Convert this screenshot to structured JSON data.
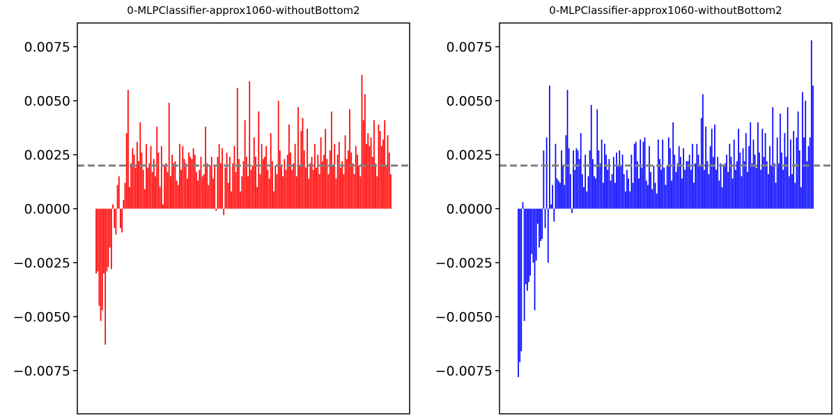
{
  "chart_data": [
    {
      "type": "bar",
      "title": "0-MLPClassifier-approx1060-withoutBottom2",
      "color": "#ff0000",
      "ylim": [
        -0.0095,
        0.0086
      ],
      "yticks": [
        0.0075,
        0.005,
        0.0025,
        0.0,
        -0.0025,
        -0.005,
        -0.0075
      ],
      "ytick_labels": [
        "0.0075",
        "0.0050",
        "0.0025",
        "0.0000",
        "−0.0025",
        "−0.0050",
        "−0.0075"
      ],
      "reference_line": {
        "value": 0.002,
        "style": "dashed",
        "color": "#808080"
      },
      "x_ticks_visible": false,
      "values": [
        -0.003,
        -0.0029,
        -0.0045,
        -0.0052,
        -0.0047,
        -0.003,
        -0.0063,
        -0.0029,
        -0.0027,
        -0.0018,
        -0.0028,
        0.0002,
        -0.0009,
        -0.0012,
        0.0011,
        0.0015,
        -0.0009,
        -0.0011,
        0.0004,
        0.0012,
        0.0035,
        0.0055,
        0.001,
        0.0021,
        0.0028,
        0.0025,
        0.0019,
        0.0031,
        0.0022,
        0.004,
        0.0026,
        0.0018,
        0.0009,
        0.003,
        0.0019,
        0.0021,
        0.0029,
        0.0017,
        0.0023,
        0.0015,
        0.0038,
        0.0026,
        0.001,
        0.0029,
        0.0002,
        0.002,
        0.0021,
        0.0017,
        0.0049,
        0.0015,
        0.0025,
        0.0021,
        0.0022,
        0.0013,
        0.0011,
        0.003,
        0.0018,
        0.0029,
        0.0023,
        0.0021,
        0.0014,
        0.0026,
        0.0024,
        0.0023,
        0.0028,
        0.0025,
        0.0017,
        0.0013,
        0.0018,
        0.0024,
        0.0015,
        0.0016,
        0.0038,
        0.0021,
        0.0011,
        0.002,
        0.0024,
        0.0014,
        0.002,
        -0.0001,
        0.0024,
        0.003,
        0.0021,
        0.0028,
        -0.0003,
        0.0019,
        0.0026,
        0.0012,
        0.0024,
        0.0008,
        0.0021,
        0.0029,
        0.0017,
        0.0056,
        0.0023,
        0.0008,
        0.0015,
        0.0022,
        0.0041,
        0.0024,
        0.0015,
        0.0059,
        0.0018,
        0.002,
        0.0033,
        0.0024,
        0.001,
        0.0045,
        0.0016,
        0.003,
        0.0023,
        0.0024,
        0.0029,
        0.0018,
        0.0014,
        0.0035,
        0.0022,
        0.0008,
        0.002,
        0.0016,
        0.005,
        0.0027,
        0.002,
        0.0015,
        0.0023,
        0.0018,
        0.0025,
        0.0039,
        0.0026,
        0.0018,
        0.0021,
        0.003,
        0.0015,
        0.0047,
        0.002,
        0.0036,
        0.0042,
        0.0027,
        0.0019,
        0.0037,
        0.0014,
        0.0021,
        0.0024,
        0.0018,
        0.003,
        0.0019,
        0.0025,
        0.0016,
        0.0033,
        0.0022,
        0.0025,
        0.0037,
        0.0023,
        0.0016,
        0.0027,
        0.0045,
        0.002,
        0.003,
        0.0014,
        0.0025,
        0.0031,
        0.0019,
        0.0022,
        0.0016,
        0.0034,
        0.0023,
        0.0027,
        0.0046,
        0.0026,
        0.0021,
        0.0016,
        0.0029,
        0.0025,
        0.002,
        0.0015,
        0.0062,
        0.0041,
        0.0053,
        0.003,
        0.0035,
        0.0029,
        0.0033,
        0.0024,
        0.0041,
        0.0021,
        0.0015,
        0.0039,
        0.0036,
        0.0029,
        0.0032,
        0.0041,
        0.002,
        0.0034,
        0.0026,
        0.0016
      ]
    },
    {
      "type": "bar",
      "title": "0-MLPClassifier-approx1060-withoutBottom2",
      "color": "#0000ff",
      "ylim": [
        -0.0095,
        0.0086
      ],
      "yticks": [
        0.0075,
        0.005,
        0.0025,
        0.0,
        -0.0025,
        -0.005,
        -0.0075
      ],
      "ytick_labels": [
        "0.0075",
        "0.0050",
        "0.0025",
        "0.0000",
        "−0.0025",
        "−0.0050",
        "−0.0075"
      ],
      "reference_line": {
        "value": 0.002,
        "style": "dashed",
        "color": "#808080"
      },
      "x_ticks_visible": false,
      "values": [
        -0.0078,
        -0.0071,
        -0.0066,
        0.0003,
        -0.0052,
        -0.0035,
        -0.0038,
        -0.0034,
        -0.0031,
        -0.0021,
        -0.0025,
        -0.0047,
        -0.0024,
        -0.0007,
        -0.0018,
        -0.0015,
        -0.0014,
        0.0027,
        -0.0009,
        0.0033,
        -0.0025,
        0.0057,
        0.0002,
        0.0011,
        -0.0006,
        0.003,
        0.0014,
        0.0013,
        0.0012,
        0.0027,
        0.002,
        0.0011,
        0.0034,
        0.0055,
        0.0028,
        0.0016,
        -0.0002,
        0.0027,
        0.0018,
        0.0028,
        0.0027,
        0.0023,
        0.0035,
        0.0016,
        0.001,
        0.0025,
        0.0008,
        0.0015,
        0.0027,
        0.0048,
        0.0023,
        0.0015,
        0.0014,
        0.0046,
        0.0027,
        0.0021,
        0.0032,
        0.0012,
        0.003,
        0.0025,
        0.0018,
        0.0023,
        0.0013,
        0.0016,
        0.0024,
        0.0012,
        0.0026,
        0.002,
        0.0027,
        0.002,
        0.0025,
        0.0016,
        0.0008,
        0.0018,
        0.0014,
        0.0008,
        0.0025,
        0.0012,
        0.003,
        0.0031,
        0.0022,
        0.0014,
        0.0032,
        0.0019,
        0.0031,
        0.0033,
        0.0013,
        0.0011,
        0.0029,
        0.0017,
        0.0009,
        0.002,
        0.0012,
        0.0007,
        0.0032,
        0.0023,
        0.0018,
        0.0032,
        0.0019,
        0.0011,
        0.002,
        0.0033,
        0.0028,
        0.0013,
        0.004,
        0.0025,
        0.0017,
        0.0021,
        0.0029,
        0.0024,
        0.0014,
        0.0028,
        0.0018,
        0.0022,
        0.0022,
        0.0025,
        0.0018,
        0.003,
        0.0012,
        0.0021,
        0.003,
        0.0025,
        0.002,
        0.0042,
        0.0053,
        0.0018,
        0.0038,
        0.0022,
        0.0016,
        0.0029,
        0.0037,
        0.0024,
        0.0039,
        0.0018,
        0.0024,
        0.0013,
        0.0021,
        0.001,
        0.002,
        0.0021,
        0.0025,
        0.0017,
        0.003,
        0.0024,
        0.0014,
        0.0032,
        0.0018,
        0.0022,
        0.0037,
        0.0026,
        0.0015,
        0.0028,
        0.0022,
        0.0035,
        0.0017,
        0.0029,
        0.004,
        0.0021,
        0.0032,
        0.0025,
        0.0019,
        0.004,
        0.0026,
        0.0018,
        0.0037,
        0.0024,
        0.0035,
        0.0022,
        0.0016,
        0.0029,
        0.002,
        0.0047,
        0.0021,
        0.0012,
        0.0033,
        0.0021,
        0.0044,
        0.0026,
        0.0018,
        0.0035,
        0.0024,
        0.0047,
        0.0015,
        0.0032,
        0.0016,
        0.0036,
        0.0012,
        0.0033,
        0.0045,
        0.0027,
        0.001,
        0.0054,
        0.0033,
        0.005,
        0.0022,
        0.0029,
        0.0033,
        0.0078,
        0.0057
      ]
    }
  ]
}
